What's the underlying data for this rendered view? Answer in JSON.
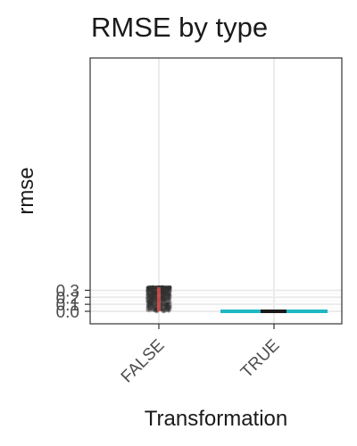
{
  "chart_data": {
    "type": "scatter",
    "title": "RMSE by type",
    "xlabel": "Transformation",
    "ylabel": "rmse",
    "categories": [
      "FALSE",
      "TRUE"
    ],
    "ylim": [
      -0.02,
      0.35
    ],
    "yticks": [
      0.0,
      0.1,
      0.2,
      0.3
    ],
    "ytick_labels": [
      "0.0",
      "0.1",
      "0.2",
      "0.3"
    ],
    "grid": true,
    "jitter": {
      "FALSE": {
        "min": 0.0,
        "max": 0.343,
        "dense_top": 0.335
      },
      "TRUE": {
        "min": 0.0,
        "max": 0.0
      }
    },
    "median_lines": [
      {
        "category": "FALSE",
        "orientation": "vertical",
        "from": 0.0,
        "to": 0.343,
        "color": "#e8514c"
      },
      {
        "category": "TRUE",
        "orientation": "horizontal",
        "value": 0.0,
        "color": "#1fb7c4"
      }
    ],
    "colors": {
      "points": "#333333",
      "false_line": "#e8514c",
      "true_line": "#1fb7c4",
      "true_center": "#1a1a1a",
      "grid_major": "#ebebeb",
      "grid_minor": "#f5f5f5",
      "panel_border": "#333333"
    }
  }
}
